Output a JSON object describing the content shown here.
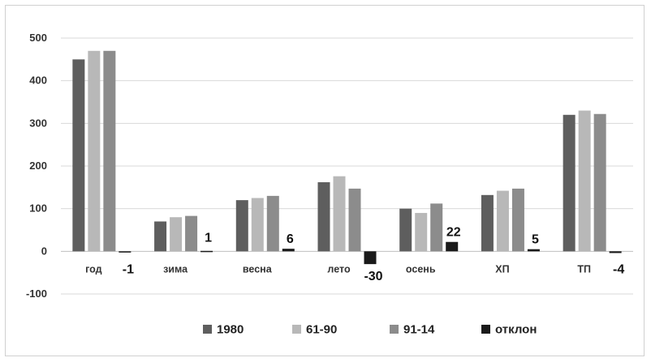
{
  "chart_data": {
    "type": "bar",
    "categories": [
      "год",
      "зима",
      "весна",
      "лето",
      "осень",
      "ХП",
      "ТП"
    ],
    "series": [
      {
        "name": "1980",
        "color": "#5e5e5e",
        "values": [
          450,
          70,
          120,
          162,
          100,
          132,
          320
        ]
      },
      {
        "name": "61-90",
        "color": "#b8b8b8",
        "values": [
          470,
          80,
          125,
          176,
          90,
          142,
          330
        ]
      },
      {
        "name": "91-14",
        "color": "#8c8c8c",
        "values": [
          470,
          83,
          130,
          147,
          112,
          147,
          322
        ]
      },
      {
        "name": "отклон",
        "color": "#1a1a1a",
        "values": [
          -1,
          1,
          6,
          -30,
          22,
          5,
          -4
        ]
      }
    ],
    "data_labels": [
      "-1",
      "1",
      "6",
      "-30",
      "22",
      "5",
      "-4"
    ],
    "yticks": [
      500,
      400,
      300,
      200,
      100,
      0,
      -100
    ],
    "ylim": [
      -100,
      500
    ],
    "grid": true,
    "legend": "bottom",
    "title": "",
    "xlabel": "",
    "ylabel": ""
  }
}
